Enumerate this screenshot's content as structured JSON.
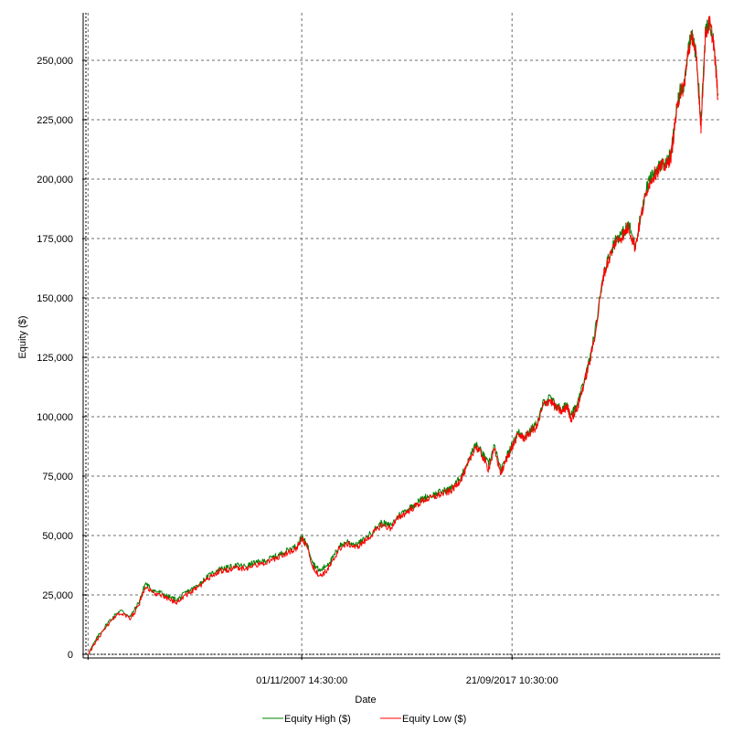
{
  "chart_data": {
    "type": "line",
    "title": "",
    "xlabel": "Date",
    "ylabel": "Equity ($)",
    "ylim": [
      0,
      270000
    ],
    "yticks": [
      {
        "value": 0,
        "label": "0"
      },
      {
        "value": 25000,
        "label": "25,000"
      },
      {
        "value": 50000,
        "label": "50,000"
      },
      {
        "value": 75000,
        "label": "75,000"
      },
      {
        "value": 100000,
        "label": "100,000"
      },
      {
        "value": 125000,
        "label": "125,000"
      },
      {
        "value": 150000,
        "label": "150,000"
      },
      {
        "value": 175000,
        "label": "175,000"
      },
      {
        "value": 200000,
        "label": "200,000"
      },
      {
        "value": 225000,
        "label": "225,000"
      },
      {
        "value": 250000,
        "label": "250,000"
      }
    ],
    "xlim": [
      1997.7,
      2027.5
    ],
    "xticks": [
      {
        "value": 1997.8,
        "label": ""
      },
      {
        "value": 2007.84,
        "label": "01/11/2007 14:30:00"
      },
      {
        "value": 2017.72,
        "label": "21/09/2017 10:30:00"
      }
    ],
    "grid": true,
    "legend_position": "bottom",
    "series": [
      {
        "name": "Equity High ($)",
        "color": "#008000",
        "x": [
          1997.8,
          1998.3,
          1998.8,
          1999.3,
          1999.8,
          2000.2,
          2000.5,
          2000.8,
          2001.2,
          2001.6,
          2002.0,
          2002.4,
          2002.8,
          2003.2,
          2003.6,
          2004.0,
          2004.4,
          2004.8,
          2005.2,
          2005.6,
          2006.0,
          2006.4,
          2006.8,
          2007.2,
          2007.6,
          2007.84,
          2008.1,
          2008.4,
          2008.7,
          2009.0,
          2009.3,
          2009.6,
          2010.0,
          2010.4,
          2010.8,
          2011.2,
          2011.6,
          2012.0,
          2012.4,
          2012.8,
          2013.2,
          2013.6,
          2014.0,
          2014.4,
          2014.8,
          2015.1,
          2015.4,
          2015.7,
          2016.0,
          2016.3,
          2016.6,
          2016.9,
          2017.2,
          2017.5,
          2017.72,
          2018.0,
          2018.3,
          2018.6,
          2018.9,
          2019.2,
          2019.5,
          2019.8,
          2020.1,
          2020.3,
          2020.5,
          2020.8,
          2021.1,
          2021.4,
          2021.7,
          2022.0,
          2022.3,
          2022.6,
          2022.9,
          2023.2,
          2023.5,
          2023.8,
          2024.1,
          2024.4,
          2024.7,
          2025.0,
          2025.2,
          2025.4,
          2025.6,
          2025.8,
          2026.0,
          2026.2,
          2026.4,
          2026.6,
          2026.8,
          2027.0,
          2027.2,
          2027.4
        ],
        "y": [
          200,
          8000,
          14000,
          18500,
          16000,
          22000,
          30000,
          27000,
          26000,
          24000,
          23000,
          26000,
          28000,
          31000,
          34000,
          36000,
          36500,
          37500,
          37000,
          38500,
          39000,
          40500,
          42000,
          44000,
          45500,
          49500,
          46000,
          38000,
          35000,
          37500,
          40500,
          45500,
          47500,
          46000,
          48500,
          52000,
          55500,
          54000,
          58500,
          61000,
          63500,
          66000,
          67000,
          68500,
          69500,
          72000,
          76000,
          82000,
          88500,
          85000,
          80000,
          87500,
          77000,
          84000,
          88000,
          93500,
          92000,
          94500,
          97000,
          106000,
          108000,
          104500,
          103000,
          105500,
          101000,
          105000,
          115000,
          125000,
          140000,
          160000,
          168000,
          175000,
          177000,
          181000,
          172000,
          186000,
          198000,
          203000,
          206000,
          207000,
          211000,
          226000,
          237000,
          240000,
          255000,
          261000,
          250000,
          224000,
          261000,
          267000,
          258000,
          236000
        ]
      },
      {
        "name": "Equity Low ($)",
        "color": "#ff0000",
        "x": [
          1997.8,
          1998.3,
          1998.8,
          1999.3,
          1999.8,
          2000.2,
          2000.5,
          2000.8,
          2001.2,
          2001.6,
          2002.0,
          2002.4,
          2002.8,
          2003.2,
          2003.6,
          2004.0,
          2004.4,
          2004.8,
          2005.2,
          2005.6,
          2006.0,
          2006.4,
          2006.8,
          2007.2,
          2007.6,
          2007.84,
          2008.1,
          2008.4,
          2008.7,
          2009.0,
          2009.3,
          2009.6,
          2010.0,
          2010.4,
          2010.8,
          2011.2,
          2011.6,
          2012.0,
          2012.4,
          2012.8,
          2013.2,
          2013.6,
          2014.0,
          2014.4,
          2014.8,
          2015.1,
          2015.4,
          2015.7,
          2016.0,
          2016.3,
          2016.6,
          2016.9,
          2017.2,
          2017.5,
          2017.72,
          2018.0,
          2018.3,
          2018.6,
          2018.9,
          2019.2,
          2019.5,
          2019.8,
          2020.1,
          2020.3,
          2020.5,
          2020.8,
          2021.1,
          2021.4,
          2021.7,
          2022.0,
          2022.3,
          2022.6,
          2022.9,
          2023.2,
          2023.5,
          2023.8,
          2024.1,
          2024.4,
          2024.7,
          2025.0,
          2025.2,
          2025.4,
          2025.6,
          2025.8,
          2026.0,
          2026.2,
          2026.4,
          2026.6,
          2026.8,
          2027.0,
          2027.2,
          2027.4
        ],
        "y": [
          0,
          7000,
          13000,
          17500,
          15000,
          21000,
          29000,
          26000,
          25000,
          23000,
          22000,
          25000,
          27000,
          30000,
          33000,
          35000,
          35500,
          36500,
          36000,
          37500,
          38000,
          39500,
          41000,
          43000,
          44500,
          48500,
          45000,
          36000,
          33000,
          35000,
          39000,
          44500,
          46500,
          45000,
          47500,
          51000,
          54500,
          53000,
          57500,
          60000,
          62500,
          65000,
          66000,
          67500,
          68500,
          71000,
          75000,
          81000,
          87500,
          84000,
          78000,
          86000,
          76000,
          83000,
          87000,
          92500,
          91000,
          93500,
          96000,
          105000,
          107000,
          103500,
          102000,
          104500,
          99000,
          104000,
          114000,
          124000,
          139000,
          159000,
          167000,
          174000,
          176000,
          180000,
          171000,
          185000,
          197000,
          202000,
          205000,
          206000,
          210000,
          225000,
          236000,
          239000,
          254000,
          260000,
          249000,
          222000,
          260000,
          266000,
          257000,
          234000
        ]
      }
    ]
  }
}
